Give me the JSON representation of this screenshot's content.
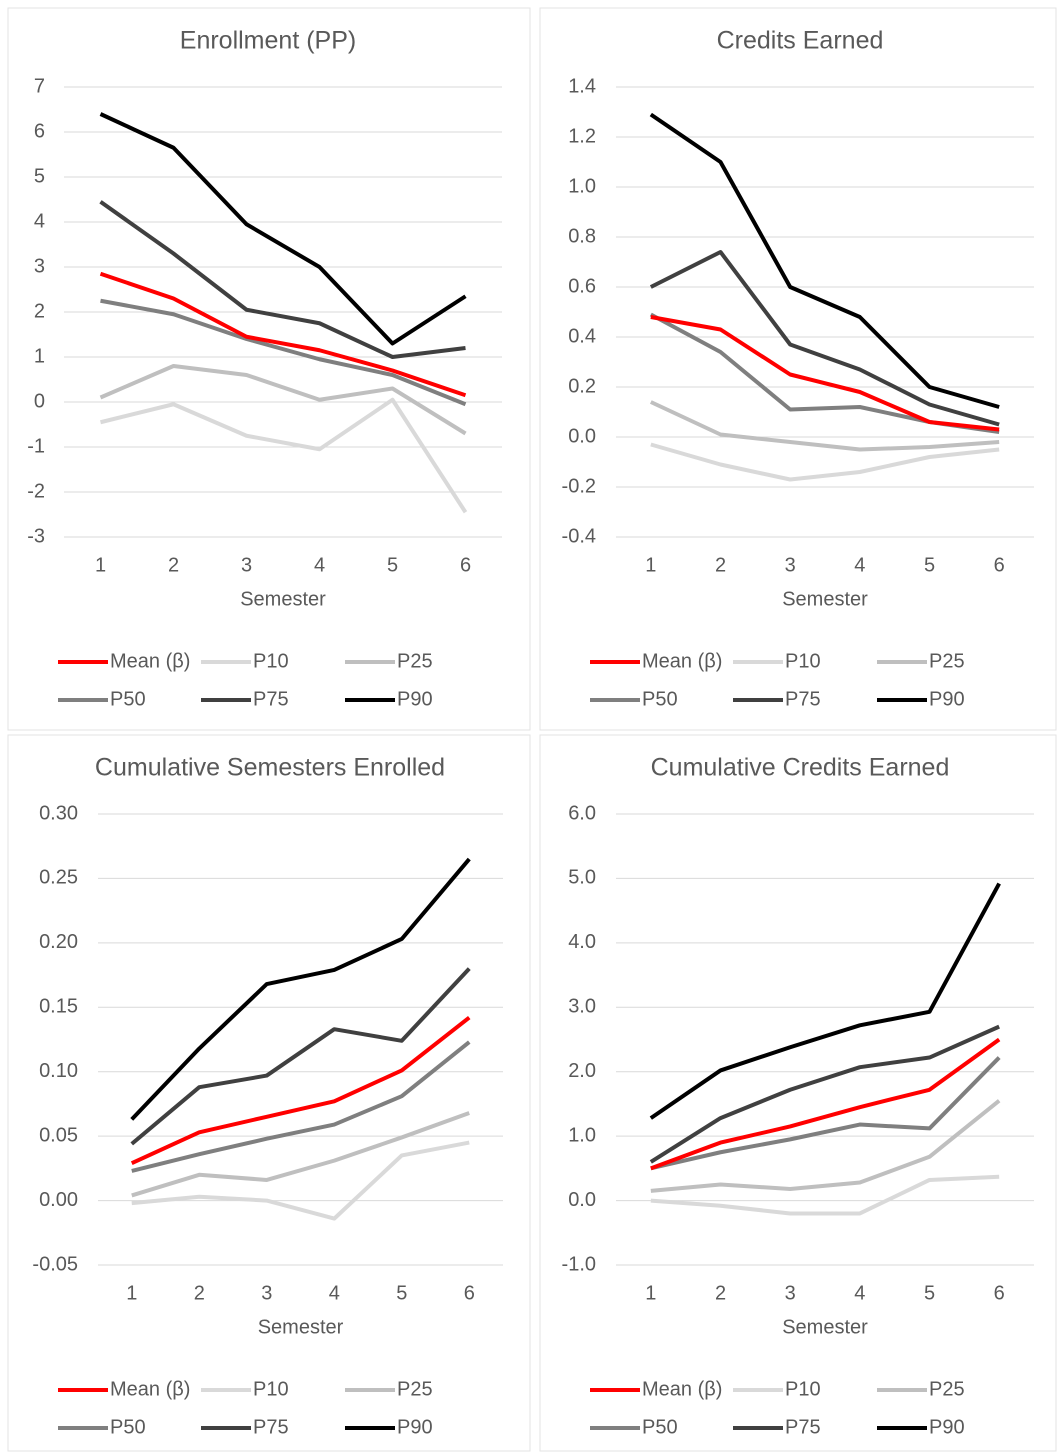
{
  "chart_data": [
    {
      "type": "line",
      "title": "Enrollment (PP)",
      "x_label": "Semester",
      "categories": [
        "1",
        "2",
        "3",
        "4",
        "5",
        "6"
      ],
      "ylim": [
        -3,
        7
      ],
      "yticks": [
        -3,
        -2,
        -1,
        0,
        1,
        2,
        3,
        4,
        5,
        6,
        7
      ],
      "grid": true,
      "series": [
        {
          "name": "Mean (β)",
          "color": "#ff0000",
          "values": [
            2.85,
            2.3,
            1.45,
            1.15,
            0.7,
            0.15
          ]
        },
        {
          "name": "P10",
          "color": "#d9d9d9",
          "values": [
            -0.45,
            -0.05,
            -0.75,
            -1.05,
            0.05,
            -2.45
          ]
        },
        {
          "name": "P25",
          "color": "#bfbfbf",
          "values": [
            0.1,
            0.8,
            0.6,
            0.05,
            0.3,
            -0.7
          ]
        },
        {
          "name": "P50",
          "color": "#7f7f7f",
          "values": [
            2.25,
            1.95,
            1.4,
            0.95,
            0.6,
            -0.05
          ]
        },
        {
          "name": "P75",
          "color": "#404040",
          "values": [
            4.45,
            3.3,
            2.05,
            1.75,
            1.0,
            1.2
          ]
        },
        {
          "name": "P90",
          "color": "#000000",
          "values": [
            6.4,
            5.65,
            3.95,
            3.0,
            1.3,
            2.35
          ]
        }
      ]
    },
    {
      "type": "line",
      "title": "Credits Earned",
      "x_label": "Semester",
      "categories": [
        "1",
        "2",
        "3",
        "4",
        "5",
        "6"
      ],
      "ylim": [
        -0.4,
        1.4
      ],
      "yticks": [
        -0.4,
        -0.2,
        {
          "value": 0,
          "label": "0.0"
        },
        0.2,
        0.4,
        0.6,
        0.8,
        {
          "value": 1,
          "label": "1.0"
        },
        1.2,
        1.4
      ],
      "grid": true,
      "series": [
        {
          "name": "Mean (β)",
          "color": "#ff0000",
          "values": [
            0.48,
            0.43,
            0.25,
            0.18,
            0.06,
            0.03
          ]
        },
        {
          "name": "P10",
          "color": "#d9d9d9",
          "values": [
            -0.03,
            -0.11,
            -0.17,
            -0.14,
            -0.08,
            -0.05
          ]
        },
        {
          "name": "P25",
          "color": "#bfbfbf",
          "values": [
            0.14,
            0.01,
            -0.02,
            -0.05,
            -0.04,
            -0.02
          ]
        },
        {
          "name": "P50",
          "color": "#7f7f7f",
          "values": [
            0.49,
            0.34,
            0.11,
            0.12,
            0.06,
            0.02
          ]
        },
        {
          "name": "P75",
          "color": "#404040",
          "values": [
            0.6,
            0.74,
            0.37,
            0.27,
            0.13,
            0.05
          ]
        },
        {
          "name": "P90",
          "color": "#000000",
          "values": [
            1.29,
            1.1,
            0.6,
            0.48,
            0.2,
            0.12
          ]
        }
      ]
    },
    {
      "type": "line",
      "title": "Cumulative Semesters Enrolled",
      "x_label": "Semester",
      "categories": [
        "1",
        "2",
        "3",
        "4",
        "5",
        "6"
      ],
      "ylim": [
        -0.05,
        0.3
      ],
      "yticks": [
        -0.05,
        {
          "value": 0,
          "label": "0.00"
        },
        0.05,
        {
          "value": 0.1,
          "label": "0.10"
        },
        0.15,
        {
          "value": 0.2,
          "label": "0.20"
        },
        0.25,
        {
          "value": 0.3,
          "label": "0.30"
        }
      ],
      "grid": true,
      "series": [
        {
          "name": "Mean (β)",
          "color": "#ff0000",
          "values": [
            0.029,
            0.053,
            0.065,
            0.077,
            0.101,
            0.142
          ]
        },
        {
          "name": "P10",
          "color": "#d9d9d9",
          "values": [
            -0.002,
            0.003,
            0.0,
            -0.014,
            0.035,
            0.045
          ]
        },
        {
          "name": "P25",
          "color": "#bfbfbf",
          "values": [
            0.004,
            0.02,
            0.016,
            0.031,
            0.049,
            0.068
          ]
        },
        {
          "name": "P50",
          "color": "#7f7f7f",
          "values": [
            0.023,
            0.036,
            0.048,
            0.059,
            0.081,
            0.123
          ]
        },
        {
          "name": "P75",
          "color": "#404040",
          "values": [
            0.044,
            0.088,
            0.097,
            0.133,
            0.124,
            0.18
          ]
        },
        {
          "name": "P90",
          "color": "#000000",
          "values": [
            0.063,
            0.118,
            0.168,
            0.179,
            0.203,
            0.265
          ]
        }
      ]
    },
    {
      "type": "line",
      "title": "Cumulative Credits Earned",
      "x_label": "Semester",
      "categories": [
        "1",
        "2",
        "3",
        "4",
        "5",
        "6"
      ],
      "ylim": [
        -1,
        6
      ],
      "yticks": [
        {
          "value": -1,
          "label": "-1.0"
        },
        {
          "value": 0,
          "label": "0.0"
        },
        {
          "value": 1,
          "label": "1.0"
        },
        {
          "value": 2,
          "label": "2.0"
        },
        {
          "value": 3,
          "label": "3.0"
        },
        {
          "value": 4,
          "label": "4.0"
        },
        {
          "value": 5,
          "label": "5.0"
        },
        {
          "value": 6,
          "label": "6.0"
        }
      ],
      "grid": true,
      "series": [
        {
          "name": "Mean (β)",
          "color": "#ff0000",
          "values": [
            0.5,
            0.9,
            1.15,
            1.45,
            1.72,
            2.5
          ]
        },
        {
          "name": "P10",
          "color": "#d9d9d9",
          "values": [
            0.0,
            -0.08,
            -0.2,
            -0.2,
            0.32,
            0.37
          ]
        },
        {
          "name": "P25",
          "color": "#bfbfbf",
          "values": [
            0.15,
            0.25,
            0.18,
            0.28,
            0.68,
            1.55
          ]
        },
        {
          "name": "P50",
          "color": "#7f7f7f",
          "values": [
            0.5,
            0.75,
            0.95,
            1.18,
            1.12,
            2.22
          ]
        },
        {
          "name": "P75",
          "color": "#404040",
          "values": [
            0.6,
            1.28,
            1.72,
            2.07,
            2.22,
            2.7
          ]
        },
        {
          "name": "P90",
          "color": "#000000",
          "values": [
            1.28,
            2.02,
            2.38,
            2.72,
            2.93,
            4.92
          ]
        }
      ]
    }
  ]
}
